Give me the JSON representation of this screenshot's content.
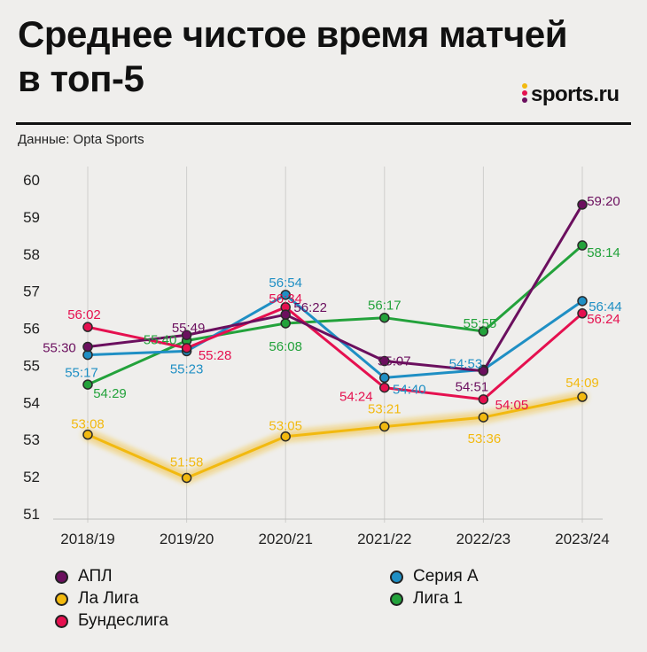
{
  "header": {
    "title_line1": "Среднее чистое время матчей",
    "title_line2": "в топ-5",
    "logo_text": "sports.ru",
    "source": "Данные: Opta Sports"
  },
  "chart_data": {
    "type": "line",
    "title": "Среднее чистое время матчей в топ-5",
    "xlabel": "",
    "ylabel": "",
    "categories": [
      "2018/19",
      "2019/20",
      "2020/21",
      "2021/22",
      "2022/23",
      "2023/24"
    ],
    "ylim": [
      51,
      60
    ],
    "yticks": [
      "51",
      "52",
      "53",
      "54",
      "55",
      "56",
      "57",
      "58",
      "59",
      "60"
    ],
    "grid": "vertical",
    "legend_position": "bottom",
    "series": [
      {
        "name": "АПЛ",
        "color": "#6b0f5e",
        "values": [
          55.5,
          55.817,
          56.367,
          55.117,
          54.85,
          59.333
        ],
        "labels": [
          "55:30",
          "55:49",
          "56:22",
          "55:07",
          "54:51",
          "59:20"
        ]
      },
      {
        "name": "Ла Лига",
        "color": "#f2b90f",
        "values": [
          53.133,
          51.967,
          53.083,
          53.35,
          53.6,
          54.15
        ],
        "labels": [
          "53:08",
          "51:58",
          "53:05",
          "53:21",
          "53:36",
          "54:09"
        ]
      },
      {
        "name": "Бундеслига",
        "color": "#e5104f",
        "values": [
          56.033,
          55.467,
          56.567,
          54.4,
          54.083,
          56.4
        ],
        "labels": [
          "56:02",
          "55:28",
          "56:34",
          "54:24",
          "54:05",
          "56:24"
        ]
      },
      {
        "name": "Серия А",
        "color": "#1f8fc4",
        "values": [
          55.283,
          55.383,
          56.9,
          54.667,
          54.883,
          56.733
        ],
        "labels": [
          "55:17",
          "55:23",
          "56:54",
          "54:40",
          "54:53",
          "56:44"
        ]
      },
      {
        "name": "Лига 1",
        "color": "#23a23b",
        "values": [
          54.483,
          55.667,
          56.133,
          56.283,
          55.917,
          58.233
        ],
        "labels": [
          "54:29",
          "55:40",
          "56:08",
          "56:17",
          "55:55",
          "58:14"
        ]
      }
    ]
  }
}
